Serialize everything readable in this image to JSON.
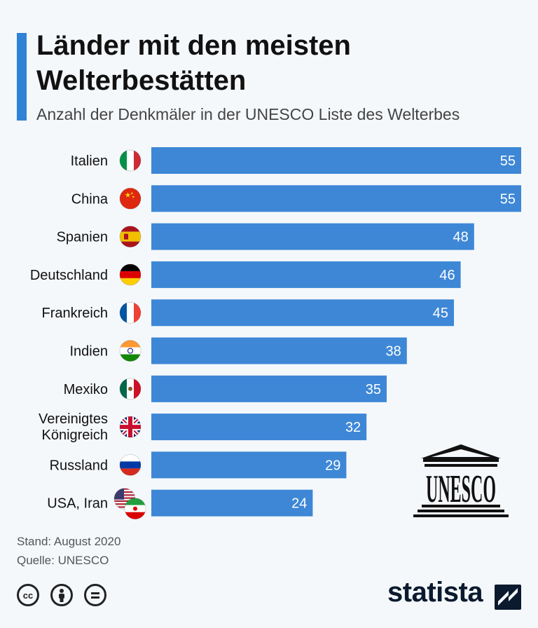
{
  "header": {
    "title": "Länder mit den meisten Welterbestätten",
    "subtitle": "Anzahl der Denkmäler in der UNESCO Liste des Welterbes"
  },
  "chart_data": {
    "type": "bar",
    "orientation": "horizontal",
    "title": "Länder mit den meisten Welterbestätten",
    "subtitle": "Anzahl der Denkmäler in der UNESCO Liste des Welterbes",
    "categories": [
      "Italien",
      "China",
      "Spanien",
      "Deutschland",
      "Frankreich",
      "Indien",
      "Mexiko",
      "Vereinigtes Königreich",
      "Russland",
      "USA, Iran"
    ],
    "values": [
      55,
      55,
      48,
      46,
      45,
      38,
      35,
      32,
      29,
      24
    ],
    "xlim": [
      0,
      55
    ],
    "bar_color": "#3d87d6",
    "label_color": "#ffffff",
    "grid": false
  },
  "logo": {
    "unesco_text": "UNESCO"
  },
  "footer": {
    "stand": "Stand: August 2020",
    "quelle": "Quelle: UNESCO",
    "brand": "statista"
  }
}
